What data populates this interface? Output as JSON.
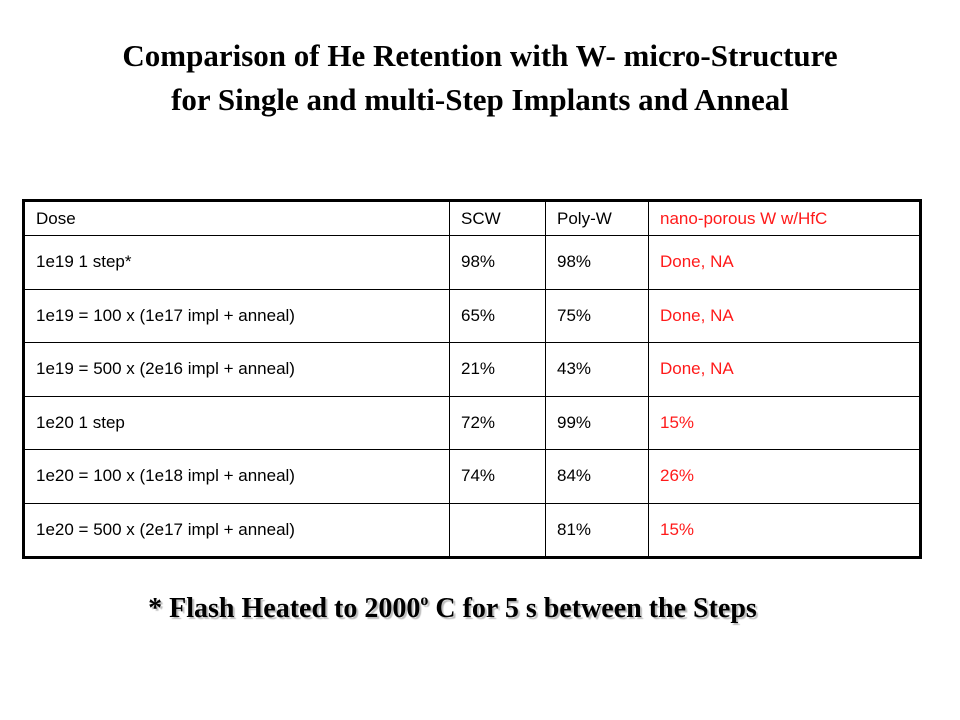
{
  "title": {
    "line1": "Comparison of He Retention with W- micro-Structure",
    "line2": "for Single and multi-Step Implants and Anneal"
  },
  "table": {
    "headers": [
      "Dose",
      "SCW",
      "Poly-W",
      "nano-porous W w/HfC"
    ],
    "rows": [
      [
        "1e19 1 step*",
        "98%",
        "98%",
        "Done, NA"
      ],
      [
        "1e19 = 100 x (1e17 impl + anneal)",
        "65%",
        "75%",
        "Done, NA"
      ],
      [
        "1e19 = 500 x (2e16 impl + anneal)",
        "21%",
        "43%",
        "Done, NA"
      ],
      [
        "1e20 1 step",
        "72%",
        "99%",
        "15%"
      ],
      [
        "1e20 = 100 x (1e18 impl + anneal)",
        "74%",
        "84%",
        "26%"
      ],
      [
        "1e20 = 500 x (2e17 impl + anneal)",
        "",
        "81%",
        "15%"
      ]
    ],
    "highlight_color": "#ff1a1a"
  },
  "footnote": {
    "prefix": "* Flash Heated to 2000",
    "degree": "o",
    "suffix": " C for 5 s between the Steps"
  }
}
